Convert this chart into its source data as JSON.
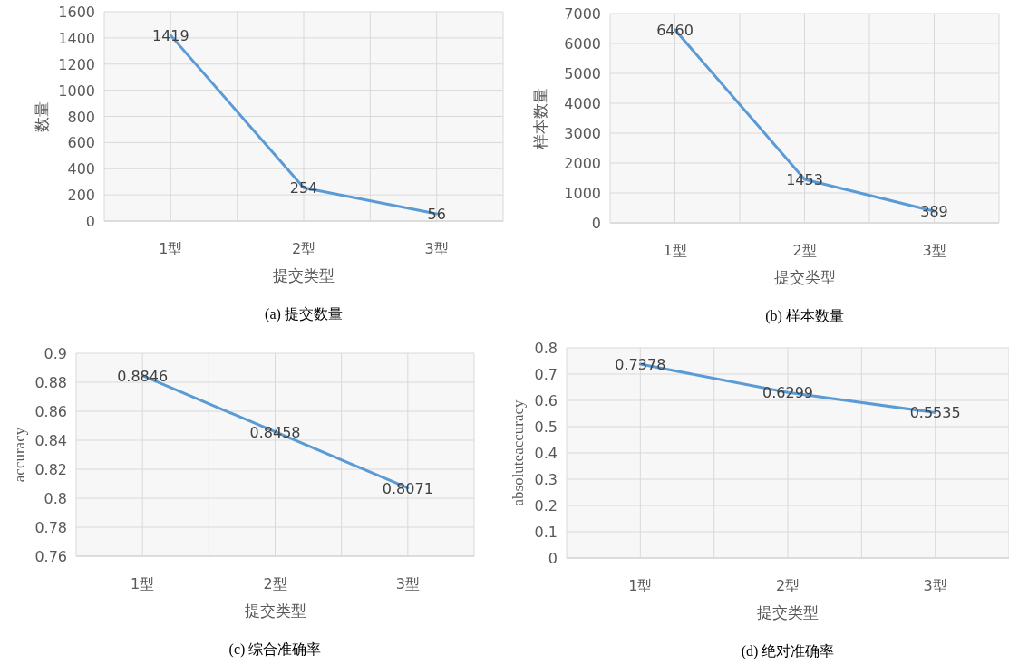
{
  "chart_data": [
    {
      "type": "line",
      "title": "(a)  提交数量",
      "xlabel": "提交类型",
      "ylabel": "数量",
      "categories": [
        "1型",
        "2型",
        "3型"
      ],
      "values": [
        1419,
        254,
        56
      ],
      "color": "#5b9bd5",
      "ylim": [
        0,
        1600
      ],
      "yticks": [
        0,
        200,
        400,
        600,
        800,
        1000,
        1200,
        1400,
        1600
      ],
      "grid": true,
      "data_labels": true,
      "marker": "none"
    },
    {
      "type": "line",
      "title": "(b)  样本数量",
      "xlabel": "提交类型",
      "ylabel": "样本数量",
      "categories": [
        "1型",
        "2型",
        "3型"
      ],
      "values": [
        6460,
        1453,
        389
      ],
      "color": "#5b9bd5",
      "ylim": [
        0,
        7000
      ],
      "yticks": [
        0,
        1000,
        2000,
        3000,
        4000,
        5000,
        6000,
        7000
      ],
      "grid": true,
      "data_labels": true,
      "marker": "none"
    },
    {
      "type": "line",
      "title": "(c)  综合准确率",
      "xlabel": "提交类型",
      "ylabel": "accuracy",
      "categories": [
        "1型",
        "2型",
        "3型"
      ],
      "values": [
        0.8846,
        0.8458,
        0.8071
      ],
      "color": "#5b9bd5",
      "ylim": [
        0.76,
        0.9
      ],
      "yticks": [
        0.76,
        0.78,
        0.8,
        0.82,
        0.84,
        0.86,
        0.88,
        0.9
      ],
      "grid": true,
      "data_labels": true,
      "marker": "none"
    },
    {
      "type": "line",
      "title": "(d)  绝对准确率",
      "xlabel": "提交类型",
      "ylabel": "absoluteaccuracy",
      "categories": [
        "1型",
        "2型",
        "3型"
      ],
      "values": [
        0.7378,
        0.6299,
        0.5535
      ],
      "color": "#5b9bd5",
      "ylim": [
        0,
        0.8
      ],
      "yticks": [
        0,
        0.1,
        0.2,
        0.3,
        0.4,
        0.5,
        0.6,
        0.7,
        0.8
      ],
      "grid": true,
      "data_labels": true,
      "marker": "none"
    }
  ]
}
